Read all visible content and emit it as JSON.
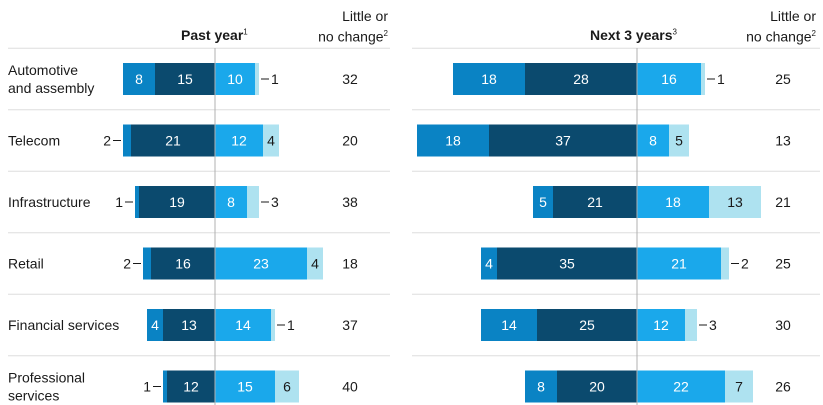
{
  "headers": {
    "past_year": "Past year",
    "past_year_note": "1",
    "next_3_years": "Next 3 years",
    "next_3_years_note": "3",
    "little_change_line1": "Little or",
    "little_change_line2": "no change",
    "little_change_note": "2"
  },
  "colors": {
    "neg_light": "#0a83c4",
    "neg_dark": "#0b4a6e",
    "pos_main": "#1aa8eb",
    "pos_light": "#aee2f0",
    "axis": "#b0b0b0",
    "divider": "#dddddd"
  },
  "chart_data": {
    "type": "diverging-bar",
    "rows": [
      {
        "label_lines": [
          "Automotive",
          "and assembly"
        ],
        "past": {
          "neg_light": 8,
          "neg_dark": 15,
          "pos_main": 10,
          "pos_light": 1,
          "little": 32
        },
        "next": {
          "neg_light": 18,
          "neg_dark": 28,
          "pos_main": 16,
          "pos_light": 1,
          "little": 25
        }
      },
      {
        "label_lines": [
          "Telecom"
        ],
        "past": {
          "neg_light": 2,
          "neg_dark": 21,
          "pos_main": 12,
          "pos_light": 4,
          "little": 20
        },
        "next": {
          "neg_light": 18,
          "neg_dark": 37,
          "pos_main": 8,
          "pos_light": 5,
          "little": 13
        }
      },
      {
        "label_lines": [
          "Infrastructure"
        ],
        "past": {
          "neg_light": 1,
          "neg_dark": 19,
          "pos_main": 8,
          "pos_light": 3,
          "little": 38
        },
        "next": {
          "neg_light": 5,
          "neg_dark": 21,
          "pos_main": 18,
          "pos_light": 13,
          "little": 21
        }
      },
      {
        "label_lines": [
          "Retail"
        ],
        "past": {
          "neg_light": 2,
          "neg_dark": 16,
          "pos_main": 23,
          "pos_light": 4,
          "little": 18
        },
        "next": {
          "neg_light": 4,
          "neg_dark": 35,
          "pos_main": 21,
          "pos_light": 2,
          "little": 25
        }
      },
      {
        "label_lines": [
          "Financial services"
        ],
        "past": {
          "neg_light": 4,
          "neg_dark": 13,
          "pos_main": 14,
          "pos_light": 1,
          "little": 37
        },
        "next": {
          "neg_light": 14,
          "neg_dark": 25,
          "pos_main": 12,
          "pos_light": 3,
          "little": 30
        }
      },
      {
        "label_lines": [
          "Professional",
          "services"
        ],
        "past": {
          "neg_light": 1,
          "neg_dark": 12,
          "pos_main": 15,
          "pos_light": 6,
          "little": 40
        },
        "next": {
          "neg_light": 8,
          "neg_dark": 20,
          "pos_main": 22,
          "pos_light": 7,
          "little": 26
        }
      }
    ]
  }
}
